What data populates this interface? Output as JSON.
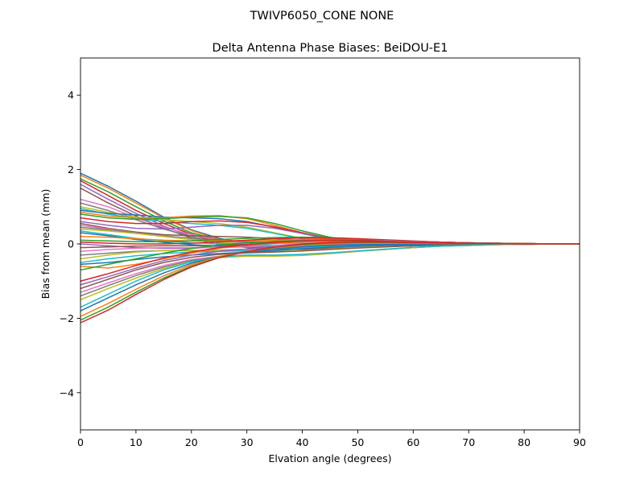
{
  "figure": {
    "suptitle": "TWIVP6050_CONE  NONE"
  },
  "chart_data": {
    "type": "line",
    "title": "Delta Antenna Phase Biases: BeiDOU-E1",
    "xlabel": "Elvation angle (degrees)",
    "ylabel": "Bias from mean (mm)",
    "xlim": [
      0,
      90
    ],
    "ylim": [
      -5,
      5
    ],
    "xticks": [
      0,
      10,
      20,
      30,
      40,
      50,
      60,
      70,
      80,
      90
    ],
    "xtick_labels": [
      "0",
      "10",
      "20",
      "30",
      "40",
      "50",
      "60",
      "70",
      "80",
      "90"
    ],
    "yticks": [
      -4,
      -2,
      0,
      2,
      4
    ],
    "ytick_labels": [
      "−4",
      "−2",
      "0",
      "2",
      "4"
    ],
    "grid": false,
    "legend": "none",
    "palette": [
      "#1f77b4",
      "#ff7f0e",
      "#2ca02c",
      "#d62728",
      "#9467bd",
      "#8c564b",
      "#e377c2",
      "#7f7f7f",
      "#bcbd22",
      "#17becf"
    ],
    "x": [
      0,
      5,
      10,
      15,
      20,
      25,
      30,
      35,
      40,
      45,
      50,
      55,
      60,
      65,
      70,
      75,
      80,
      85,
      90
    ],
    "series": [
      {
        "values": [
          1.9,
          1.55,
          1.15,
          0.72,
          0.38,
          0.15,
          0.02,
          -0.06,
          -0.1,
          -0.1,
          -0.08,
          -0.06,
          -0.04,
          -0.03,
          -0.02,
          -0.01,
          -0.01,
          0.0,
          0.0
        ]
      },
      {
        "values": [
          1.85,
          1.5,
          1.1,
          0.7,
          0.36,
          0.12,
          0.0,
          -0.08,
          -0.11,
          -0.11,
          -0.09,
          -0.07,
          -0.05,
          -0.03,
          -0.02,
          -0.01,
          -0.01,
          0.0,
          0.0
        ]
      },
      {
        "values": [
          1.75,
          1.4,
          1.0,
          0.62,
          0.3,
          0.1,
          -0.02,
          -0.09,
          -0.12,
          -0.12,
          -0.1,
          -0.07,
          -0.05,
          -0.03,
          -0.02,
          -0.01,
          0.0,
          0.0,
          0.0
        ]
      },
      {
        "values": [
          1.7,
          1.3,
          0.9,
          0.55,
          0.26,
          0.05,
          -0.06,
          -0.12,
          -0.14,
          -0.13,
          -0.1,
          -0.07,
          -0.05,
          -0.03,
          -0.02,
          -0.01,
          0.0,
          0.0,
          0.0
        ]
      },
      {
        "values": [
          1.6,
          1.2,
          0.82,
          0.48,
          0.2,
          0.02,
          -0.08,
          -0.13,
          -0.15,
          -0.13,
          -0.1,
          -0.07,
          -0.05,
          -0.03,
          -0.02,
          -0.01,
          0.0,
          0.0,
          0.0
        ]
      },
      {
        "values": [
          1.5,
          1.1,
          0.75,
          0.42,
          0.16,
          -0.02,
          -0.1,
          -0.14,
          -0.15,
          -0.13,
          -0.1,
          -0.07,
          -0.05,
          -0.03,
          -0.02,
          -0.01,
          0.0,
          0.0,
          0.0
        ]
      },
      {
        "values": [
          1.2,
          1.0,
          0.7,
          0.45,
          0.25,
          0.1,
          0.0,
          -0.06,
          -0.09,
          -0.09,
          -0.08,
          -0.06,
          -0.04,
          -0.03,
          -0.02,
          -0.01,
          0.0,
          0.0,
          0.0
        ]
      },
      {
        "values": [
          1.1,
          0.9,
          0.65,
          0.4,
          0.2,
          0.05,
          -0.04,
          -0.09,
          -0.11,
          -0.1,
          -0.08,
          -0.06,
          -0.04,
          -0.03,
          -0.02,
          -0.01,
          0.0,
          0.0,
          0.0
        ]
      },
      {
        "values": [
          1.0,
          0.85,
          0.72,
          0.65,
          0.6,
          0.55,
          0.45,
          0.3,
          0.15,
          0.05,
          0.0,
          -0.02,
          -0.03,
          -0.02,
          -0.02,
          -0.01,
          0.0,
          0.0,
          0.0
        ]
      },
      {
        "values": [
          0.95,
          0.8,
          0.68,
          0.6,
          0.55,
          0.5,
          0.42,
          0.28,
          0.14,
          0.05,
          0.0,
          -0.02,
          -0.03,
          -0.02,
          -0.02,
          -0.01,
          0.0,
          0.0,
          0.0
        ]
      },
      {
        "values": [
          0.9,
          0.82,
          0.78,
          0.72,
          0.7,
          0.68,
          0.6,
          0.45,
          0.28,
          0.12,
          0.03,
          -0.02,
          -0.03,
          -0.03,
          -0.02,
          -0.01,
          0.0,
          0.0,
          0.0
        ]
      },
      {
        "values": [
          0.85,
          0.75,
          0.7,
          0.7,
          0.75,
          0.76,
          0.68,
          0.5,
          0.3,
          0.15,
          0.05,
          0.0,
          -0.02,
          -0.02,
          -0.02,
          -0.01,
          0.0,
          0.0,
          0.0
        ]
      },
      {
        "values": [
          0.8,
          0.7,
          0.66,
          0.68,
          0.72,
          0.74,
          0.7,
          0.55,
          0.35,
          0.18,
          0.07,
          0.01,
          -0.01,
          -0.02,
          -0.02,
          -0.01,
          0.0,
          0.0,
          0.0
        ]
      },
      {
        "values": [
          0.7,
          0.6,
          0.55,
          0.55,
          0.6,
          0.62,
          0.58,
          0.46,
          0.3,
          0.15,
          0.06,
          0.01,
          -0.01,
          -0.02,
          -0.01,
          -0.01,
          0.0,
          0.0,
          0.0
        ]
      },
      {
        "values": [
          0.6,
          0.5,
          0.42,
          0.4,
          0.45,
          0.5,
          0.5,
          0.42,
          0.28,
          0.14,
          0.06,
          0.01,
          -0.01,
          -0.01,
          -0.01,
          -0.01,
          0.0,
          0.0,
          0.0
        ]
      },
      {
        "values": [
          0.55,
          0.42,
          0.32,
          0.25,
          0.22,
          0.2,
          0.18,
          0.14,
          0.1,
          0.06,
          0.03,
          0.01,
          0.0,
          0.0,
          0.0,
          0.0,
          0.0,
          0.0,
          0.0
        ]
      },
      {
        "values": [
          0.5,
          0.4,
          0.3,
          0.2,
          0.12,
          0.07,
          0.04,
          0.02,
          0.02,
          0.03,
          0.03,
          0.02,
          0.02,
          0.01,
          0.01,
          0.0,
          0.0,
          0.0,
          0.0
        ]
      },
      {
        "values": [
          0.45,
          0.38,
          0.3,
          0.22,
          0.15,
          0.1,
          0.06,
          0.05,
          0.05,
          0.05,
          0.04,
          0.03,
          0.02,
          0.01,
          0.01,
          0.0,
          0.0,
          0.0,
          0.0
        ]
      },
      {
        "values": [
          0.4,
          0.35,
          0.28,
          0.2,
          0.12,
          0.05,
          0.0,
          -0.03,
          -0.04,
          -0.04,
          -0.03,
          -0.02,
          -0.02,
          -0.01,
          -0.01,
          0.0,
          0.0,
          0.0,
          0.0
        ]
      },
      {
        "values": [
          0.35,
          0.25,
          0.15,
          0.08,
          0.03,
          0.0,
          -0.02,
          -0.03,
          -0.03,
          -0.03,
          -0.02,
          -0.02,
          -0.01,
          -0.01,
          0.0,
          0.0,
          0.0,
          0.0,
          0.0
        ]
      },
      {
        "values": [
          0.3,
          0.22,
          0.12,
          0.04,
          -0.02,
          -0.06,
          -0.08,
          -0.08,
          -0.07,
          -0.06,
          -0.05,
          -0.04,
          -0.03,
          -0.02,
          -0.01,
          -0.01,
          0.0,
          0.0,
          0.0
        ]
      },
      {
        "values": [
          0.2,
          0.18,
          0.14,
          0.1,
          0.08,
          0.08,
          0.09,
          0.1,
          0.12,
          0.14,
          0.13,
          0.1,
          0.07,
          0.05,
          0.03,
          0.02,
          0.01,
          0.0,
          0.0
        ]
      },
      {
        "values": [
          0.1,
          0.08,
          0.06,
          0.06,
          0.08,
          0.12,
          0.15,
          0.17,
          0.18,
          0.17,
          0.14,
          0.1,
          0.07,
          0.05,
          0.03,
          0.02,
          0.01,
          0.0,
          0.0
        ]
      },
      {
        "values": [
          0.05,
          0.02,
          0.0,
          0.0,
          0.02,
          0.06,
          0.1,
          0.14,
          0.16,
          0.16,
          0.14,
          0.11,
          0.08,
          0.05,
          0.03,
          0.02,
          0.01,
          0.0,
          0.0
        ]
      },
      {
        "values": [
          0.0,
          -0.05,
          -0.1,
          -0.12,
          -0.12,
          -0.08,
          -0.02,
          0.05,
          0.1,
          0.12,
          0.11,
          0.09,
          0.07,
          0.05,
          0.03,
          0.02,
          0.01,
          0.0,
          0.0
        ]
      },
      {
        "values": [
          -0.1,
          -0.08,
          -0.06,
          -0.05,
          -0.05,
          -0.04,
          -0.02,
          0.02,
          0.06,
          0.09,
          0.1,
          0.09,
          0.07,
          0.05,
          0.03,
          0.02,
          0.01,
          0.0,
          0.0
        ]
      },
      {
        "values": [
          -0.2,
          -0.15,
          -0.12,
          -0.1,
          -0.1,
          -0.1,
          -0.08,
          -0.04,
          0.02,
          0.06,
          0.08,
          0.08,
          0.06,
          0.05,
          0.03,
          0.02,
          0.01,
          0.0,
          0.0
        ]
      },
      {
        "values": [
          -0.3,
          -0.25,
          -0.2,
          -0.18,
          -0.18,
          -0.17,
          -0.14,
          -0.08,
          -0.02,
          0.03,
          0.06,
          0.06,
          0.05,
          0.04,
          0.03,
          0.02,
          0.01,
          0.0,
          0.0
        ]
      },
      {
        "values": [
          -0.4,
          -0.3,
          -0.22,
          -0.18,
          -0.17,
          -0.18,
          -0.2,
          -0.2,
          -0.18,
          -0.14,
          -0.1,
          -0.07,
          -0.05,
          -0.03,
          -0.02,
          -0.01,
          0.0,
          0.0,
          0.0
        ]
      },
      {
        "values": [
          -0.5,
          -0.4,
          -0.32,
          -0.26,
          -0.22,
          -0.2,
          -0.18,
          -0.14,
          -0.1,
          -0.06,
          -0.04,
          -0.03,
          -0.02,
          -0.01,
          -0.01,
          0.0,
          0.0,
          0.0,
          0.0
        ]
      },
      {
        "values": [
          -0.55,
          -0.5,
          -0.42,
          -0.35,
          -0.3,
          -0.26,
          -0.22,
          -0.18,
          -0.13,
          -0.09,
          -0.06,
          -0.04,
          -0.03,
          -0.02,
          -0.01,
          -0.01,
          0.0,
          0.0,
          0.0
        ]
      },
      {
        "values": [
          -0.6,
          -0.65,
          -0.55,
          -0.4,
          -0.25,
          -0.12,
          -0.03,
          0.03,
          0.06,
          0.07,
          0.06,
          0.05,
          0.04,
          0.03,
          0.02,
          0.01,
          0.01,
          0.0,
          0.0
        ]
      },
      {
        "values": [
          -0.7,
          -0.55,
          -0.4,
          -0.25,
          -0.12,
          -0.03,
          0.03,
          0.07,
          0.09,
          0.09,
          0.08,
          0.06,
          0.05,
          0.03,
          0.02,
          0.01,
          0.01,
          0.0,
          0.0
        ]
      },
      {
        "values": [
          -1.0,
          -0.8,
          -0.58,
          -0.38,
          -0.22,
          -0.1,
          -0.02,
          0.04,
          0.08,
          0.1,
          0.09,
          0.07,
          0.05,
          0.04,
          0.02,
          0.01,
          0.01,
          0.0,
          0.0
        ]
      },
      {
        "values": [
          -1.1,
          -0.88,
          -0.65,
          -0.45,
          -0.3,
          -0.2,
          -0.14,
          -0.1,
          -0.06,
          -0.02,
          0.0,
          0.01,
          0.01,
          0.01,
          0.01,
          0.0,
          0.0,
          0.0,
          0.0
        ]
      },
      {
        "values": [
          -1.2,
          -0.95,
          -0.7,
          -0.5,
          -0.36,
          -0.28,
          -0.24,
          -0.22,
          -0.19,
          -0.15,
          -0.11,
          -0.08,
          -0.05,
          -0.03,
          -0.02,
          -0.01,
          0.0,
          0.0,
          0.0
        ]
      },
      {
        "values": [
          -1.3,
          -1.05,
          -0.8,
          -0.58,
          -0.42,
          -0.33,
          -0.3,
          -0.3,
          -0.28,
          -0.24,
          -0.19,
          -0.14,
          -0.1,
          -0.06,
          -0.04,
          -0.02,
          -0.01,
          0.0,
          0.0
        ]
      },
      {
        "values": [
          -1.4,
          -1.12,
          -0.85,
          -0.62,
          -0.45,
          -0.35,
          -0.32,
          -0.32,
          -0.3,
          -0.26,
          -0.2,
          -0.15,
          -0.1,
          -0.06,
          -0.04,
          -0.02,
          -0.01,
          0.0,
          0.0
        ]
      },
      {
        "values": [
          -1.5,
          -1.2,
          -0.92,
          -0.66,
          -0.48,
          -0.37,
          -0.33,
          -0.33,
          -0.31,
          -0.26,
          -0.2,
          -0.15,
          -0.1,
          -0.06,
          -0.04,
          -0.02,
          -0.01,
          0.0,
          0.0
        ]
      },
      {
        "values": [
          -1.7,
          -1.35,
          -1.0,
          -0.7,
          -0.48,
          -0.35,
          -0.3,
          -0.3,
          -0.28,
          -0.24,
          -0.19,
          -0.14,
          -0.09,
          -0.06,
          -0.04,
          -0.02,
          -0.01,
          0.0,
          0.0
        ]
      },
      {
        "values": [
          -1.8,
          -1.45,
          -1.1,
          -0.78,
          -0.52,
          -0.34,
          -0.22,
          -0.14,
          -0.08,
          -0.04,
          -0.02,
          -0.01,
          0.0,
          0.0,
          0.0,
          0.0,
          0.0,
          0.0,
          0.0
        ]
      },
      {
        "values": [
          -1.95,
          -1.6,
          -1.22,
          -0.86,
          -0.56,
          -0.34,
          -0.2,
          -0.1,
          -0.04,
          0.0,
          0.02,
          0.02,
          0.02,
          0.01,
          0.01,
          0.0,
          0.0,
          0.0,
          0.0
        ]
      },
      {
        "values": [
          -2.05,
          -1.7,
          -1.3,
          -0.92,
          -0.6,
          -0.36,
          -0.2,
          -0.09,
          -0.02,
          0.02,
          0.04,
          0.04,
          0.03,
          0.02,
          0.01,
          0.01,
          0.0,
          0.0,
          0.0
        ]
      },
      {
        "values": [
          -2.12,
          -1.78,
          -1.36,
          -0.96,
          -0.62,
          -0.37,
          -0.2,
          -0.08,
          0.0,
          0.04,
          0.05,
          0.05,
          0.04,
          0.03,
          0.02,
          0.01,
          0.0,
          0.0,
          0.0
        ]
      }
    ]
  }
}
